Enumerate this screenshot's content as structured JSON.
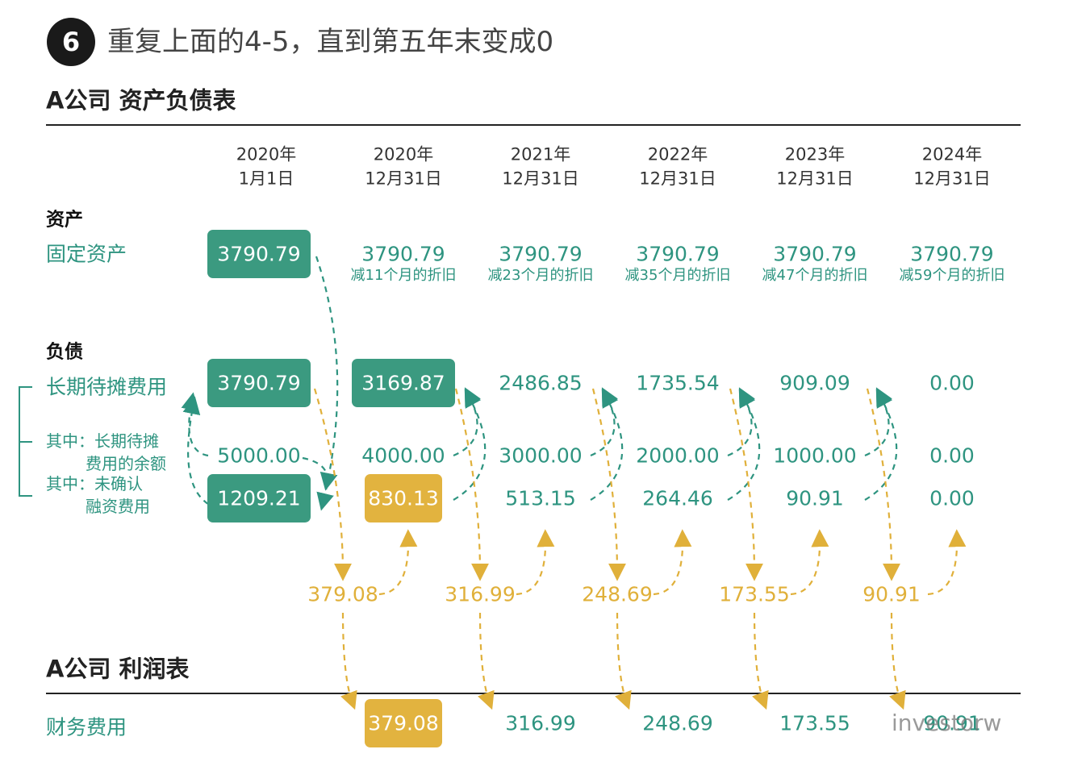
{
  "step": {
    "number": "6",
    "title": "重复上面的4-5，直到第五年末变成0"
  },
  "balance_sheet": {
    "title": "A公司 资产负债表",
    "columns": [
      {
        "year": "2020年",
        "date": "1月1日"
      },
      {
        "year": "2020年",
        "date": "12月31日"
      },
      {
        "year": "2021年",
        "date": "12月31日"
      },
      {
        "year": "2022年",
        "date": "12月31日"
      },
      {
        "year": "2023年",
        "date": "12月31日"
      },
      {
        "year": "2024年",
        "date": "12月31日"
      }
    ],
    "assets": {
      "heading": "资产",
      "label": "固定资产",
      "values": [
        "3790.79",
        "3790.79",
        "3790.79",
        "3790.79",
        "3790.79",
        "3790.79"
      ],
      "notes": [
        "减11个月的折旧",
        "减23个月的折旧",
        "减35个月的折旧",
        "减47个月的折旧",
        "减59个月的折旧"
      ]
    },
    "liabilities": {
      "heading": "负债",
      "rows": [
        {
          "label": [
            "长期待摊费用"
          ],
          "values": [
            "3790.79",
            "3169.87",
            "2486.85",
            "1735.54",
            "909.09",
            "0.00"
          ]
        },
        {
          "label": [
            "其中：长期待摊",
            "费用的余额"
          ],
          "values": [
            "5000.00",
            "4000.00",
            "3000.00",
            "2000.00",
            "1000.00",
            "0.00"
          ]
        },
        {
          "label": [
            "其中：未确认",
            "融资费用"
          ],
          "values": [
            "1209.21",
            "830.13",
            "513.15",
            "264.46",
            "90.91",
            "0.00"
          ]
        }
      ]
    }
  },
  "interest": [
    "379.08",
    "316.99",
    "248.69",
    "173.55",
    "90.91"
  ],
  "income_statement": {
    "title": "A公司 利润表",
    "label": "财务费用",
    "values": [
      "379.08",
      "316.99",
      "248.69",
      "173.55",
      "90.91"
    ]
  },
  "watermark": "investorw"
}
